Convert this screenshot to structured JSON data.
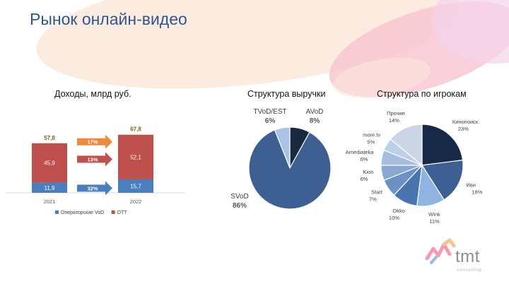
{
  "slide": {
    "title": "Рынок онлайн-видео",
    "logo": {
      "name": "tmt",
      "subtitle": "consulting"
    }
  },
  "chart_data": [
    {
      "type": "bar",
      "subtype": "stacked",
      "title": "Доходы, млрд руб.",
      "categories": [
        "2021",
        "2022"
      ],
      "series": [
        {
          "name": "Операторские VoD",
          "values": [
            11.9,
            15.7
          ],
          "labels": [
            "11,9",
            "15,7"
          ],
          "color": "#4a7ebf"
        },
        {
          "name": "OTT",
          "values": [
            45.9,
            52.1
          ],
          "labels": [
            "45,9",
            "52,1"
          ],
          "color": "#c0504d"
        }
      ],
      "totals": [
        57.8,
        67.8
      ],
      "total_labels": [
        "57,8",
        "67,8"
      ],
      "growth_arrows": [
        {
          "label": "17%",
          "applies_to": "total",
          "color": "#ed8a3d"
        },
        {
          "label": "13%",
          "applies_to": "OTT",
          "color": "#c0504d"
        },
        {
          "label": "32%",
          "applies_to": "Операторские VoD",
          "color": "#4a7ebf"
        }
      ],
      "ylim": [
        0,
        75
      ],
      "legend": "bottom",
      "total_label_color": "#8a5a12"
    },
    {
      "type": "pie",
      "title": "Структура выручки",
      "slices": [
        {
          "name": "AVoD",
          "value": 8,
          "label": "8%",
          "color": "#17283f"
        },
        {
          "name": "SVoD",
          "value": 86,
          "label": "86%",
          "color": "#3d5f91"
        },
        {
          "name": "TVoD/EST",
          "value": 6,
          "label": "6%",
          "color": "#a9c4e4"
        }
      ]
    },
    {
      "type": "pie",
      "title": "Структура по игрокам",
      "slices": [
        {
          "name": "Кинопоиск",
          "value": 23,
          "label": "23%",
          "color": "#162946"
        },
        {
          "name": "Иви",
          "value": 18,
          "label": "18%",
          "color": "#3e5f93"
        },
        {
          "name": "Wink",
          "value": 11,
          "label": "11%",
          "color": "#8fb4e2"
        },
        {
          "name": "Okko",
          "value": 10,
          "label": "10%",
          "color": "#4a74b0"
        },
        {
          "name": "Start",
          "value": 7,
          "label": "7%",
          "color": "#6b91c6"
        },
        {
          "name": "Kion",
          "value": 6,
          "label": "6%",
          "color": "#8aa7cf"
        },
        {
          "name": "Amediateka",
          "value": 6,
          "label": "6%",
          "color": "#a7bddd"
        },
        {
          "name": "more.tv",
          "value": 5,
          "label": "5%",
          "color": "#bdd0ea"
        },
        {
          "name": "Прочие",
          "value": 14,
          "label": "14%",
          "color": "#ccd6e6"
        }
      ]
    }
  ]
}
